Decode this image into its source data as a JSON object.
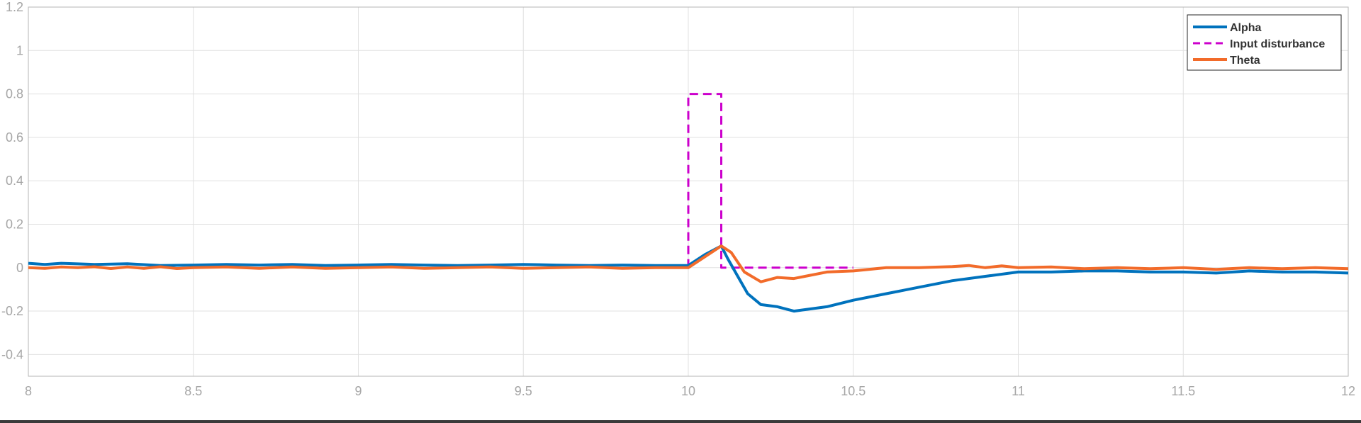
{
  "chart_data": {
    "type": "line",
    "title": "",
    "xlabel": "",
    "ylabel": "",
    "xlim": [
      8,
      12
    ],
    "ylim": [
      -0.5,
      1.2
    ],
    "grid": true,
    "legend_position": "top-right",
    "x_ticks": [
      "8",
      "8.5",
      "9",
      "9.5",
      "10",
      "10.5",
      "11",
      "11.5",
      "12"
    ],
    "y_ticks": [
      "1.2",
      "1",
      "0.8",
      "0.6",
      "0.4",
      "0.2",
      "0",
      "-0.2",
      "-0.4"
    ],
    "series": [
      {
        "name": "Alpha",
        "color": "#0072BD",
        "style": "solid",
        "x": [
          8.0,
          8.05,
          8.1,
          8.2,
          8.3,
          8.4,
          8.5,
          8.6,
          8.7,
          8.8,
          8.9,
          9.0,
          9.1,
          9.2,
          9.3,
          9.4,
          9.5,
          9.6,
          9.7,
          9.8,
          9.9,
          10.0,
          10.05,
          10.1,
          10.12,
          10.15,
          10.18,
          10.22,
          10.27,
          10.32,
          10.37,
          10.42,
          10.5,
          10.6,
          10.7,
          10.8,
          10.9,
          11.0,
          11.1,
          11.2,
          11.3,
          11.4,
          11.5,
          11.6,
          11.7,
          11.8,
          11.9,
          12.0
        ],
        "y": [
          0.02,
          0.015,
          0.02,
          0.015,
          0.018,
          0.01,
          0.012,
          0.015,
          0.012,
          0.015,
          0.01,
          0.012,
          0.015,
          0.012,
          0.01,
          0.012,
          0.015,
          0.012,
          0.01,
          0.012,
          0.01,
          0.01,
          0.06,
          0.1,
          0.04,
          -0.04,
          -0.12,
          -0.17,
          -0.18,
          -0.2,
          -0.19,
          -0.18,
          -0.15,
          -0.12,
          -0.09,
          -0.06,
          -0.04,
          -0.02,
          -0.02,
          -0.015,
          -0.015,
          -0.02,
          -0.02,
          -0.025,
          -0.015,
          -0.02,
          -0.02,
          -0.025
        ]
      },
      {
        "name": "Input disturbance",
        "color": "#CC00CC",
        "style": "dashed",
        "x": [
          10.0,
          10.0,
          10.1,
          10.1,
          10.5
        ],
        "y": [
          0.0,
          0.8,
          0.8,
          0.0,
          0.0
        ]
      },
      {
        "name": "Theta",
        "color": "#F26B2A",
        "style": "solid",
        "x": [
          8.0,
          8.05,
          8.1,
          8.15,
          8.2,
          8.25,
          8.3,
          8.35,
          8.4,
          8.45,
          8.5,
          8.6,
          8.7,
          8.8,
          8.9,
          9.0,
          9.1,
          9.2,
          9.3,
          9.4,
          9.5,
          9.6,
          9.7,
          9.8,
          9.9,
          10.0,
          10.05,
          10.1,
          10.13,
          10.17,
          10.22,
          10.27,
          10.32,
          10.37,
          10.42,
          10.5,
          10.6,
          10.7,
          10.8,
          10.85,
          10.9,
          10.95,
          11.0,
          11.1,
          11.2,
          11.3,
          11.4,
          11.5,
          11.6,
          11.7,
          11.8,
          11.9,
          12.0
        ],
        "y": [
          0.0,
          -0.003,
          0.003,
          0.0,
          0.004,
          -0.004,
          0.003,
          -0.003,
          0.004,
          -0.004,
          0.0,
          0.003,
          -0.003,
          0.003,
          -0.003,
          0.0,
          0.003,
          -0.003,
          0.0,
          0.003,
          -0.003,
          0.0,
          0.003,
          -0.003,
          0.0,
          0.0,
          0.05,
          0.1,
          0.07,
          -0.02,
          -0.065,
          -0.045,
          -0.05,
          -0.035,
          -0.02,
          -0.015,
          0.0,
          0.0,
          0.005,
          0.01,
          0.0,
          0.008,
          0.0,
          0.003,
          -0.005,
          0.0,
          -0.005,
          0.0,
          -0.008,
          0.0,
          -0.005,
          0.0,
          -0.005
        ]
      }
    ]
  }
}
